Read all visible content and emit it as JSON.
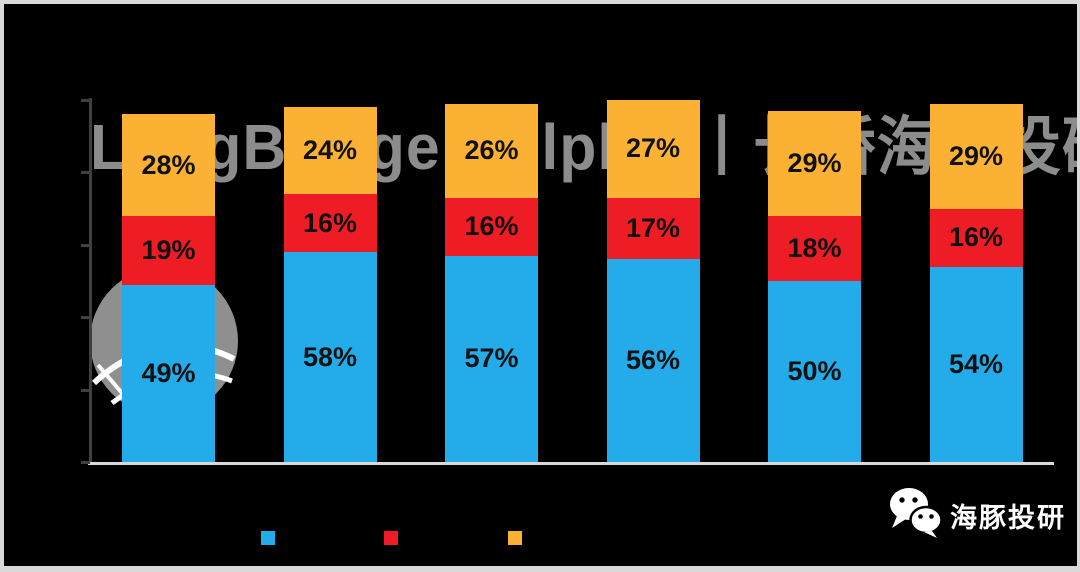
{
  "frame": {
    "background": "#000000",
    "border_color": "#D9D9D9"
  },
  "watermark": {
    "text": "LongBridge Dolphin丨长桥海豚投研",
    "color": "#8C8C8C",
    "dolphin_icon_color": "#8F8F8F"
  },
  "chart_data": {
    "type": "bar",
    "stacked": true,
    "orientation": "vertical",
    "value_suffix": "%",
    "categories": [
      "",
      "",
      "",
      "",
      "",
      ""
    ],
    "series": [
      {
        "name": "segment-blue",
        "color": "#23ACE9",
        "values": [
          49,
          58,
          57,
          56,
          50,
          54
        ]
      },
      {
        "name": "segment-red",
        "color": "#EE1C25",
        "values": [
          19,
          16,
          16,
          17,
          18,
          16
        ]
      },
      {
        "name": "segment-yellow",
        "color": "#FBB234",
        "values": [
          28,
          24,
          26,
          27,
          29,
          29
        ]
      }
    ],
    "ylim": [
      0,
      100
    ],
    "y_tick_step": 20,
    "axis_tick_labels_visible": false,
    "category_labels_visible": false,
    "axis_color": "#3F3F3F",
    "baseline_color": "#D9D9D9",
    "value_label_color": "#111111",
    "legend": {
      "position": "bottom",
      "labels_visible": false,
      "swatch_colors": [
        "#23ACE9",
        "#EE1C25",
        "#FBB234"
      ]
    }
  },
  "footer_logo": {
    "text": "海豚投研",
    "color": "#FFFFFF",
    "icon": "wechat-icon"
  }
}
